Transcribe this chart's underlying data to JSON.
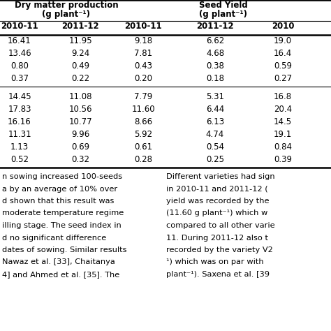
{
  "col_headers": [
    "2010-11",
    "2011-12",
    "2010-11",
    "2011-12",
    "2010"
  ],
  "section1_rows": [
    [
      "16.41",
      "11.95",
      "9.18",
      "6.62",
      "19.0"
    ],
    [
      "13.46",
      "9.24",
      "7.81",
      "4.68",
      "16.4"
    ],
    [
      "0.80",
      "0.49",
      "0.43",
      "0.38",
      "0.59"
    ],
    [
      "0.37",
      "0.22",
      "0.20",
      "0.18",
      "0.27"
    ]
  ],
  "section2_rows": [
    [
      "14.45",
      "11.08",
      "7.79",
      "5.31",
      "16.8"
    ],
    [
      "17.83",
      "10.56",
      "11.60",
      "6.44",
      "20.4"
    ],
    [
      "16.16",
      "10.77",
      "8.66",
      "6.13",
      "14.5"
    ],
    [
      "11.31",
      "9.96",
      "5.92",
      "4.74",
      "19.1"
    ],
    [
      "1.13",
      "0.69",
      "0.61",
      "0.54",
      "0.84"
    ],
    [
      "0.52",
      "0.32",
      "0.28",
      "0.25",
      "0.39"
    ]
  ],
  "text_left": [
    "n sowing increased 100-seeds",
    "a by an average of 10% over",
    "d shown that this result was",
    "moderate temperature regime",
    "illing stage. The seed index in",
    "d no significant difference",
    "dates of sowing. Similar results",
    "Nawaz et al. [33], Chaitanya",
    "4] and Ahmed et al. [35]. The"
  ],
  "text_right": [
    "Different varieties had sign",
    "in 2010-11 and 2011-12 (",
    "yield was recorded by the",
    "(11.60 g plant⁻¹) which w",
    "compared to all other varie",
    "11. During 2011-12 also t",
    "recorded by the variety V2",
    "¹) which was on par with",
    "plant⁻¹). Saxena et al. [39"
  ],
  "bg_color": "#ffffff",
  "text_color": "#000000"
}
